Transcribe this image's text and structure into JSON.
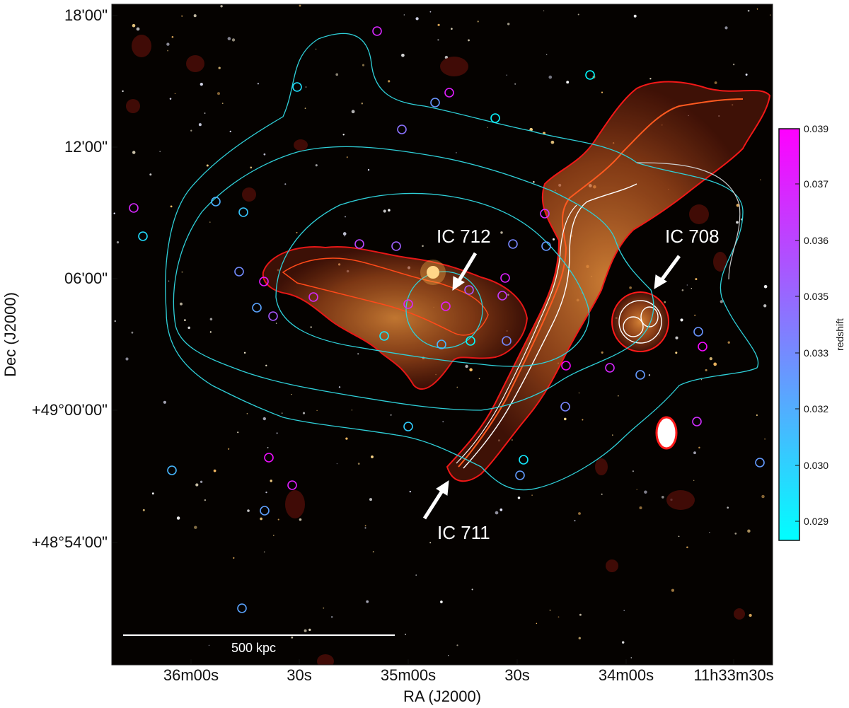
{
  "figure": {
    "y_ticks": [
      "18'00\"",
      "12'00\"",
      "06'00\"",
      "+49°00'00\"",
      "+48°54'00\""
    ],
    "x_ticks": [
      "36m00s",
      "30s",
      "35m00s",
      "30s",
      "34m00s",
      "11h33m30s"
    ],
    "y_axis_label": "Dec (J2000)",
    "x_axis_label": "RA (J2000)",
    "annotations": {
      "ic712": "IC 712",
      "ic708": "IC 708",
      "ic711": "IC 711"
    },
    "scalebar_label": "500 kpc"
  },
  "colorbar": {
    "label": "redshift",
    "ticks": [
      "0.039",
      "0.037",
      "0.036",
      "0.035",
      "0.033",
      "0.032",
      "0.030",
      "0.029"
    ],
    "color_top": "#ff00ff",
    "color_bottom": "#00ffff"
  },
  "colors": {
    "sky": "#050200",
    "radio_emission": "#c8641e",
    "radio_contour": "#ff1a1a",
    "high_res_contour": "#ffffff",
    "xray_contour": "#2fd0d8"
  }
}
